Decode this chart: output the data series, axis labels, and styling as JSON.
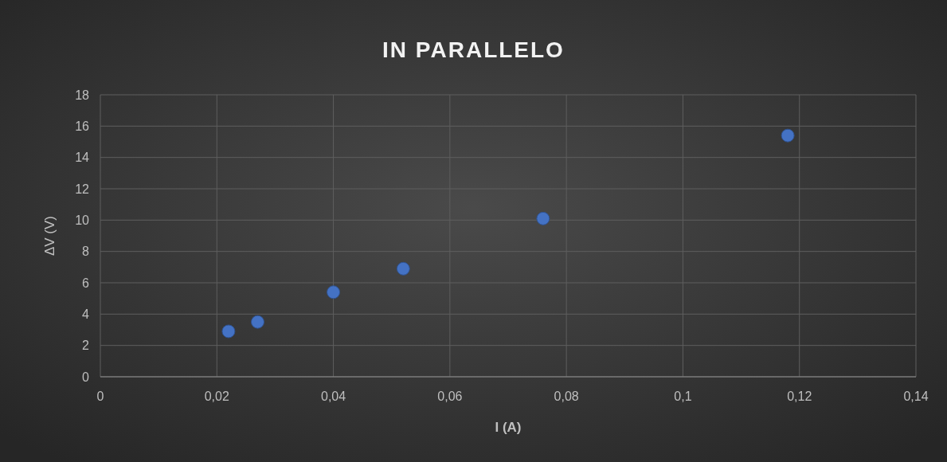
{
  "chart_data": {
    "type": "scatter",
    "title": "IN PARALLELO",
    "xlabel": "I (A)",
    "ylabel": "ΔV (V)",
    "x": [
      0.022,
      0.027,
      0.04,
      0.052,
      0.076,
      0.118
    ],
    "series": [
      {
        "color": "#4472c4",
        "values": [
          2.9,
          3.5,
          5.4,
          6.9,
          10.1,
          15.4
        ]
      }
    ],
    "xlim": [
      0,
      0.14
    ],
    "xticks": [
      0,
      {
        "value": 0.02,
        "label": "0,02"
      },
      {
        "value": 0.04,
        "label": "0,04"
      },
      {
        "value": 0.06,
        "label": "0,06"
      },
      {
        "value": 0.08,
        "label": "0,08"
      },
      {
        "value": 0.1,
        "label": "0,1"
      },
      {
        "value": 0.12,
        "label": "0,12"
      },
      {
        "value": 0.14,
        "label": "0,14"
      }
    ],
    "ylim": [
      0,
      18
    ],
    "yticks": [
      0,
      2,
      4,
      6,
      8,
      10,
      12,
      14,
      16,
      18
    ],
    "grid": true,
    "marker": "circle"
  }
}
